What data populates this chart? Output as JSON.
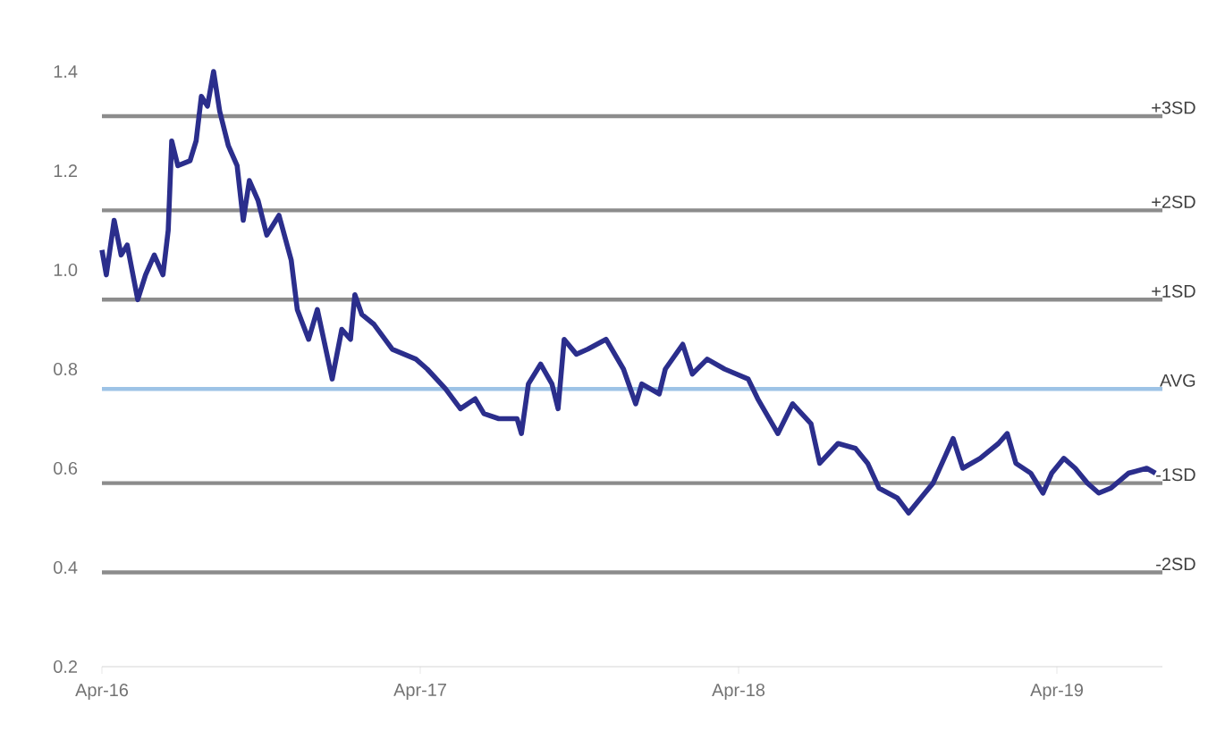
{
  "chart_data": {
    "type": "line",
    "xlim": [
      "2016-04-01",
      "2019-07-31"
    ],
    "ylim": [
      0.2,
      1.4
    ],
    "xticks": [
      {
        "value": "2016-04-01",
        "label": "Apr-16"
      },
      {
        "value": "2017-04-01",
        "label": "Apr-17"
      },
      {
        "value": "2018-04-01",
        "label": "Apr-18"
      },
      {
        "value": "2019-04-01",
        "label": "Apr-19"
      }
    ],
    "yticks": [
      0.2,
      0.4,
      0.6,
      0.8,
      {
        "value": 1,
        "label": "1.0"
      },
      1.2,
      1.4
    ],
    "grid": false,
    "legend": false,
    "marker": "none",
    "line_style": "solid",
    "series": [
      {
        "color": "#2b2e8c",
        "x": [
          "2016-04-01",
          "2016-04-06",
          "2016-04-15",
          "2016-04-23",
          "2016-04-30",
          "2016-05-12",
          "2016-05-21",
          "2016-05-31",
          "2016-06-10",
          "2016-06-16",
          "2016-06-20",
          "2016-06-27",
          "2016-07-11",
          "2016-07-18",
          "2016-07-24",
          "2016-07-31",
          "2016-08-07",
          "2016-08-14",
          "2016-08-24",
          "2016-09-03",
          "2016-09-10",
          "2016-09-17",
          "2016-09-27",
          "2016-10-07",
          "2016-10-21",
          "2016-11-04",
          "2016-11-11",
          "2016-11-24",
          "2016-12-04",
          "2016-12-21",
          "2017-01-01",
          "2017-01-11",
          "2017-01-16",
          "2017-01-24",
          "2017-02-07",
          "2017-02-28",
          "2017-03-27",
          "2017-04-09",
          "2017-04-30",
          "2017-05-17",
          "2017-06-03",
          "2017-06-13",
          "2017-06-30",
          "2017-07-21",
          "2017-07-26",
          "2017-08-03",
          "2017-08-17",
          "2017-08-30",
          "2017-09-06",
          "2017-09-13",
          "2017-09-27",
          "2017-10-10",
          "2017-10-31",
          "2017-11-20",
          "2017-12-04",
          "2017-12-11",
          "2017-12-31",
          "2018-01-07",
          "2018-01-27",
          "2018-02-07",
          "2018-02-24",
          "2018-03-16",
          "2018-04-12",
          "2018-04-23",
          "2018-05-16",
          "2018-06-02",
          "2018-06-23",
          "2018-07-03",
          "2018-07-24",
          "2018-08-13",
          "2018-08-27",
          "2018-09-09",
          "2018-09-30",
          "2018-10-13",
          "2018-10-27",
          "2018-11-10",
          "2018-12-03",
          "2018-12-14",
          "2019-01-03",
          "2019-01-24",
          "2019-02-03",
          "2019-02-13",
          "2019-03-02",
          "2019-03-16",
          "2019-03-26",
          "2019-04-09",
          "2019-04-22",
          "2019-05-06",
          "2019-05-19",
          "2019-06-02",
          "2019-06-22",
          "2019-07-13",
          "2019-07-23"
        ],
        "values": [
          1.04,
          0.99,
          1.1,
          1.03,
          1.05,
          0.94,
          0.99,
          1.03,
          0.99,
          1.08,
          1.26,
          1.21,
          1.22,
          1.26,
          1.35,
          1.33,
          1.4,
          1.32,
          1.25,
          1.21,
          1.1,
          1.18,
          1.14,
          1.07,
          1.11,
          1.02,
          0.92,
          0.86,
          0.92,
          0.78,
          0.88,
          0.86,
          0.95,
          0.91,
          0.89,
          0.84,
          0.82,
          0.8,
          0.76,
          0.72,
          0.74,
          0.71,
          0.7,
          0.7,
          0.67,
          0.77,
          0.81,
          0.77,
          0.72,
          0.86,
          0.83,
          0.84,
          0.86,
          0.8,
          0.73,
          0.77,
          0.75,
          0.8,
          0.85,
          0.79,
          0.82,
          0.8,
          0.78,
          0.74,
          0.67,
          0.73,
          0.69,
          0.61,
          0.65,
          0.64,
          0.61,
          0.56,
          0.54,
          0.51,
          0.54,
          0.57,
          0.66,
          0.6,
          0.62,
          0.65,
          0.67,
          0.61,
          0.59,
          0.55,
          0.59,
          0.62,
          0.6,
          0.57,
          0.55,
          0.56,
          0.59,
          0.6,
          0.59
        ]
      }
    ],
    "ref_lines": [
      {
        "axis": "y",
        "value": 1.31,
        "label": "+3SD",
        "color": "#8c8c8c"
      },
      {
        "axis": "y",
        "value": 1.12,
        "label": "+2SD",
        "color": "#8c8c8c"
      },
      {
        "axis": "y",
        "value": 0.94,
        "label": "+1SD",
        "color": "#8c8c8c"
      },
      {
        "axis": "y",
        "value": 0.76,
        "label": "AVG",
        "color": "#9dc3e6"
      },
      {
        "axis": "y",
        "value": 0.57,
        "label": "-1SD",
        "color": "#8c8c8c"
      },
      {
        "axis": "y",
        "value": 0.39,
        "label": "-2SD",
        "color": "#8c8c8c"
      }
    ]
  }
}
